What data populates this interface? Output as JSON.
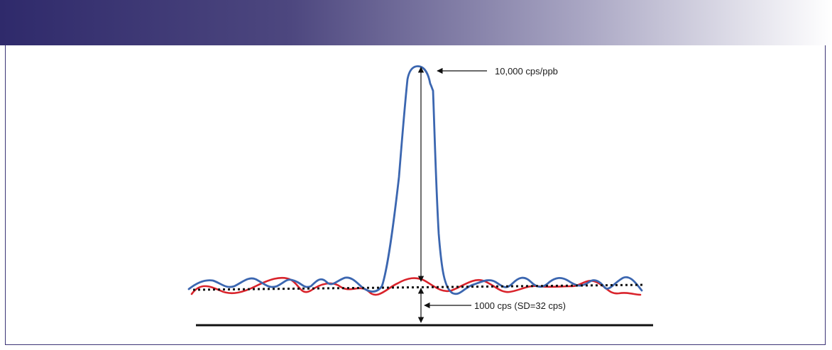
{
  "colors": {
    "header_start": "#2f2a6b",
    "header_end": "#ffffff",
    "frame": "#3b3475",
    "signal": "#3b66b0",
    "noise": "#d9232b",
    "mean_line": "#111111",
    "arrows": "#111111"
  },
  "annotations": {
    "peak_label": "10,000 cps/ppb",
    "background_label": "1000 cps (SD=32 cps)"
  }
}
